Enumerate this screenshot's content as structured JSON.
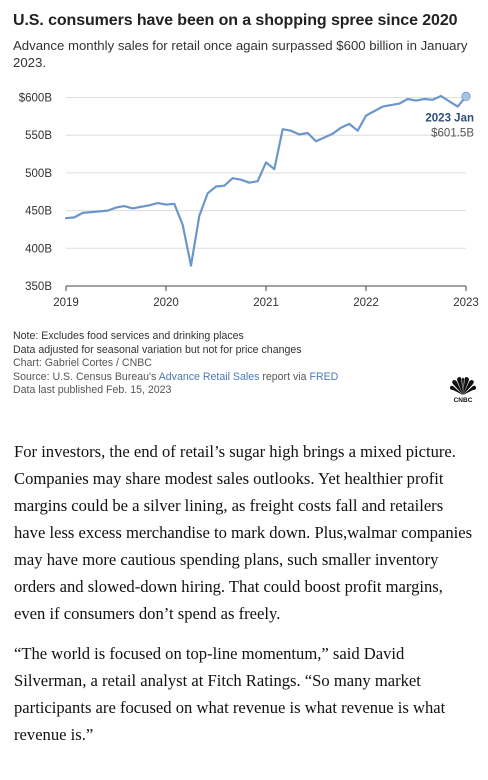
{
  "title": "U.S. consumers have been on a shopping spree since 2020",
  "subtitle": "Advance monthly sales for retail once again surpassed $600 billion in January 2023.",
  "notes": {
    "note1": "Note: Excludes food services and drinking places",
    "note2": "Data adjusted for seasonal variation but not for price changes",
    "credit": "Chart: Gabriel Cortes / CNBC",
    "source_prefix": "Source: U.S. Census Bureau's",
    "source_link1": "Advance Retail Sales",
    "source_mid": "report via",
    "source_link2": "FRED",
    "published": "Data last published Feb. 15, 2023"
  },
  "logo": {
    "icon": "nbc-peacock-icon",
    "text": "CNBC"
  },
  "colors": {
    "line": "#6b96cc",
    "marker": "#a9c4e8",
    "grid": "#dddddd",
    "text": "#333333",
    "link": "#4a78b5"
  },
  "chart_data": {
    "type": "line",
    "title": "U.S. consumers have been on a shopping spree since 2020",
    "xlabel": "",
    "ylabel": "",
    "x_ticks": [
      "2019",
      "2020",
      "2021",
      "2022",
      "2023"
    ],
    "y_ticks": [
      "$600B",
      "550B",
      "500B",
      "450B",
      "400B",
      "350B"
    ],
    "ylim": [
      350,
      610
    ],
    "xlim": [
      "2019-01",
      "2023-01"
    ],
    "grid": true,
    "legend": "none",
    "series": [
      {
        "x": [
          "2019-01",
          "2019-02",
          "2019-03",
          "2019-04",
          "2019-05",
          "2019-06",
          "2019-07",
          "2019-08",
          "2019-09",
          "2019-10",
          "2019-11",
          "2019-12",
          "2020-01",
          "2020-02",
          "2020-03",
          "2020-04",
          "2020-05",
          "2020-06",
          "2020-07",
          "2020-08",
          "2020-09",
          "2020-10",
          "2020-11",
          "2020-12",
          "2021-01",
          "2021-02",
          "2021-03",
          "2021-04",
          "2021-05",
          "2021-06",
          "2021-07",
          "2021-08",
          "2021-09",
          "2021-10",
          "2021-11",
          "2021-12",
          "2022-01",
          "2022-02",
          "2022-03",
          "2022-04",
          "2022-05",
          "2022-06",
          "2022-07",
          "2022-08",
          "2022-09",
          "2022-10",
          "2022-11",
          "2022-12",
          "2023-01"
        ],
        "values": [
          440,
          441,
          447,
          448,
          449,
          450,
          454,
          456,
          453,
          455,
          457,
          460,
          458,
          459,
          431,
          377,
          443,
          473,
          482,
          483,
          493,
          491,
          487,
          489,
          514,
          505,
          558,
          556,
          551,
          553,
          542,
          547,
          552,
          560,
          565,
          556,
          576,
          582,
          588,
          590,
          592,
          598,
          596,
          598,
          597,
          602,
          595,
          588,
          601.5
        ]
      }
    ],
    "annotation": {
      "label": "2023 Jan",
      "value_label": "$601.5B",
      "x": "2023-01",
      "y": 601.5
    }
  },
  "article": {
    "p1": "For investors, the end of retail’s sugar high brings a mixed picture. Companies may share modest sales outlooks. Yet healthier profit margins could be a silver lining, as freight costs fall and retailers have less excess merchandise to mark down. Plus,walmar companies may have more cautious spending plans, such smaller inventory orders and slowed-down hiring. That could boost profit margins, even if consumers don’t spend as freely.",
    "p2": "“The world is focused on top-line momentum,” said David Silverman, a retail analyst at Fitch Ratings. “So many market participants are focused on what revenue is what revenue is what revenue is.”"
  }
}
